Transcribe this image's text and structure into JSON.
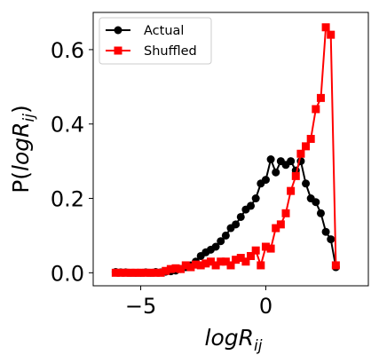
{
  "chart_data": {
    "type": "line",
    "xlabel_main": "logR",
    "xlabel_sub": "ij",
    "ylabel_pre": "P(",
    "ylabel_main": "logR",
    "ylabel_sub": "ij",
    "ylabel_post": ")",
    "xlim": [
      -6.9,
      4.1
    ],
    "ylim": [
      -0.035,
      0.7
    ],
    "xticks": [
      -5,
      0
    ],
    "xtick_labels": [
      "−5",
      "0"
    ],
    "yticks": [
      0.0,
      0.2,
      0.4,
      0.6
    ],
    "ytick_labels": [
      "0.0",
      "0.2",
      "0.4",
      "0.6"
    ],
    "legend_position": "top-left",
    "grid": false,
    "series": [
      {
        "name": "Actual",
        "color": "#000000",
        "marker": "circle",
        "x": [
          -6.0,
          -5.8,
          -5.6,
          -5.4,
          -5.2,
          -5.0,
          -4.8,
          -4.6,
          -4.4,
          -4.2,
          -4.0,
          -3.8,
          -3.6,
          -3.4,
          -3.2,
          -3.0,
          -2.8,
          -2.6,
          -2.4,
          -2.2,
          -2.0,
          -1.8,
          -1.6,
          -1.4,
          -1.2,
          -1.0,
          -0.8,
          -0.6,
          -0.4,
          -0.2,
          0.0,
          0.2,
          0.4,
          0.6,
          0.8,
          1.0,
          1.2,
          1.4,
          1.6,
          1.8,
          2.0,
          2.2,
          2.4,
          2.6,
          2.8
        ],
        "y": [
          0.002,
          0.001,
          0.001,
          0.0,
          0.0,
          0.0,
          0.001,
          0.0,
          0.002,
          0.001,
          0.003,
          0.004,
          0.006,
          0.01,
          0.015,
          0.02,
          0.03,
          0.045,
          0.055,
          0.062,
          0.07,
          0.085,
          0.1,
          0.12,
          0.13,
          0.15,
          0.17,
          0.18,
          0.2,
          0.24,
          0.25,
          0.305,
          0.27,
          0.3,
          0.29,
          0.3,
          0.275,
          0.3,
          0.24,
          0.2,
          0.19,
          0.16,
          0.11,
          0.09,
          0.015
        ]
      },
      {
        "name": "Shuffled",
        "color": "#ff0000",
        "marker": "square",
        "x": [
          -6.0,
          -5.8,
          -5.6,
          -5.4,
          -5.2,
          -5.0,
          -4.8,
          -4.6,
          -4.4,
          -4.2,
          -4.0,
          -3.8,
          -3.6,
          -3.4,
          -3.2,
          -3.0,
          -2.8,
          -2.6,
          -2.4,
          -2.2,
          -2.0,
          -1.8,
          -1.6,
          -1.4,
          -1.2,
          -1.0,
          -0.8,
          -0.6,
          -0.4,
          -0.2,
          0.0,
          0.2,
          0.4,
          0.6,
          0.8,
          1.0,
          1.2,
          1.4,
          1.6,
          1.8,
          2.0,
          2.2,
          2.4,
          2.6,
          2.8
        ],
        "y": [
          0.0,
          0.0,
          0.0,
          0.0,
          0.0,
          0.0,
          0.0,
          0.0,
          0.0,
          0.0,
          0.005,
          0.01,
          0.012,
          0.01,
          0.02,
          0.015,
          0.022,
          0.02,
          0.025,
          0.03,
          0.02,
          0.03,
          0.03,
          0.02,
          0.035,
          0.04,
          0.03,
          0.045,
          0.06,
          0.02,
          0.07,
          0.065,
          0.12,
          0.13,
          0.16,
          0.22,
          0.26,
          0.32,
          0.34,
          0.36,
          0.44,
          0.47,
          0.66,
          0.64,
          0.02
        ]
      }
    ]
  }
}
